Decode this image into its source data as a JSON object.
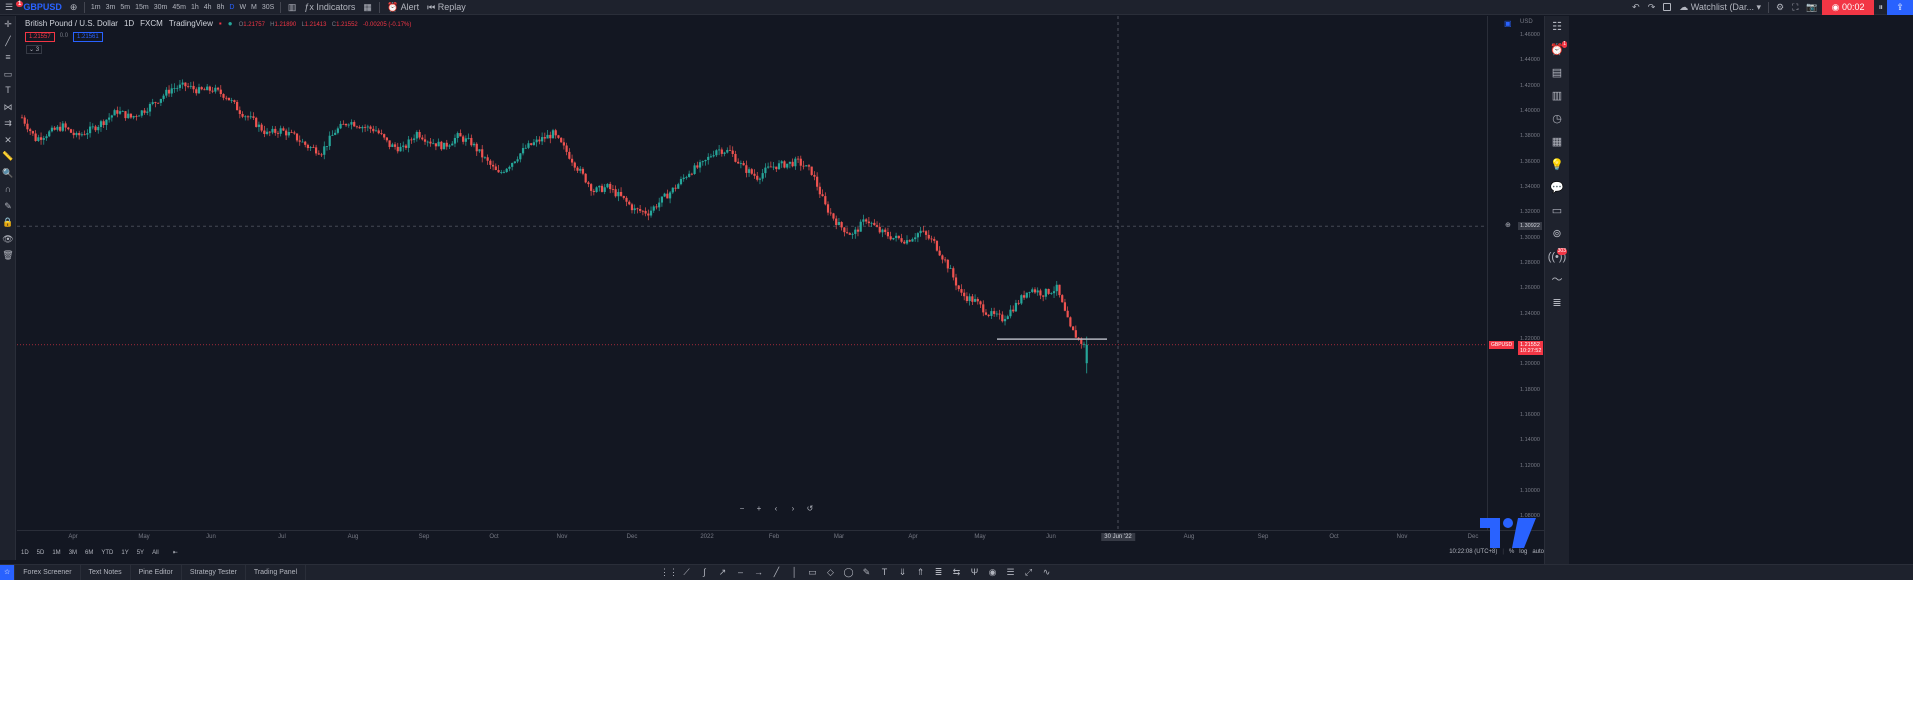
{
  "header": {
    "symbol": "GBPUSD",
    "notif_count": "1",
    "intervals": [
      "1m",
      "3m",
      "5m",
      "15m",
      "30m",
      "45m",
      "1h",
      "4h",
      "8h",
      "D",
      "W",
      "M",
      "30S"
    ],
    "active_interval": "D",
    "indicators_label": "Indicators",
    "alert_label": "Alert",
    "replay_label": "Replay",
    "watchlist_label": "Watchlist (Dar...",
    "record_time": "00:02"
  },
  "legend": {
    "title": "British Pound / U.S. Dollar",
    "interval": "1D",
    "exchange": "FXCM",
    "source": "TradingView",
    "o_label": "O",
    "o_value": "1.21757",
    "h_label": "H",
    "h_value": "1.21890",
    "l_label": "L",
    "l_value": "1.21413",
    "c_label": "C",
    "c_value": "1.21552",
    "change": "-0.00205 (-0.17%)",
    "bid": "1.21557",
    "spread": "0.0",
    "ask": "1.21561",
    "indicator_count": "3"
  },
  "price_axis": {
    "currency": "USD",
    "ticks": [
      "1.46000",
      "1.44000",
      "1.42000",
      "1.40000",
      "1.38000",
      "1.36000",
      "1.34000",
      "1.32000",
      "1.30000",
      "1.28000",
      "1.26000",
      "1.24000",
      "1.22000",
      "1.20000",
      "1.18000",
      "1.16000",
      "1.14000",
      "1.12000",
      "1.10000",
      "1.08000"
    ],
    "crosshair_price": "1.30922",
    "last_price": "1.21552",
    "last_symbol": "GBPUSD",
    "countdown": "10:27:52"
  },
  "time_axis": {
    "ticks": [
      "Apr",
      "May",
      "Jun",
      "Jul",
      "Aug",
      "Sep",
      "Oct",
      "Nov",
      "Dec",
      "2022",
      "Feb",
      "Mar",
      "Apr",
      "May",
      "Jun",
      "Aug",
      "Sep",
      "Oct",
      "Nov",
      "Dec"
    ],
    "crosshair_date": "30 Jun '22"
  },
  "range_buttons": [
    "1D",
    "5D",
    "1M",
    "3M",
    "6M",
    "YTD",
    "1Y",
    "5Y",
    "All"
  ],
  "clock": "10:22:08 (UTC+8)",
  "axis_opts": [
    "%",
    "log",
    "auto"
  ],
  "panels": [
    "Forex Screener",
    "Text Notes",
    "Pine Editor",
    "Strategy Tester",
    "Trading Panel"
  ],
  "colors": {
    "up": "#26a69a",
    "down": "#ef5350",
    "bg": "#131722",
    "accent": "#2962ff"
  },
  "chart_data": {
    "type": "candlestick",
    "symbol": "GBPUSD",
    "interval": "1D",
    "x_range": [
      "2021-03",
      "2022-12"
    ],
    "ylim": [
      1.08,
      1.46
    ],
    "close_path_weekly": [
      1.395,
      1.378,
      1.383,
      1.388,
      1.38,
      1.385,
      1.392,
      1.4,
      1.395,
      1.401,
      1.409,
      1.418,
      1.42,
      1.416,
      1.417,
      1.412,
      1.4,
      1.392,
      1.382,
      1.385,
      1.38,
      1.372,
      1.368,
      1.384,
      1.392,
      1.388,
      1.385,
      1.373,
      1.37,
      1.383,
      1.376,
      1.372,
      1.38,
      1.375,
      1.362,
      1.35,
      1.36,
      1.371,
      1.377,
      1.382,
      1.368,
      1.352,
      1.337,
      1.34,
      1.332,
      1.322,
      1.32,
      1.33,
      1.34,
      1.352,
      1.358,
      1.37,
      1.368,
      1.355,
      1.348,
      1.356,
      1.358,
      1.36,
      1.352,
      1.325,
      1.31,
      1.302,
      1.315,
      1.305,
      1.3,
      1.298,
      1.305,
      1.296,
      1.278,
      1.255,
      1.25,
      1.24,
      1.236,
      1.247,
      1.26,
      1.256,
      1.26,
      1.228,
      1.215
    ],
    "support_level": 1.22
  }
}
